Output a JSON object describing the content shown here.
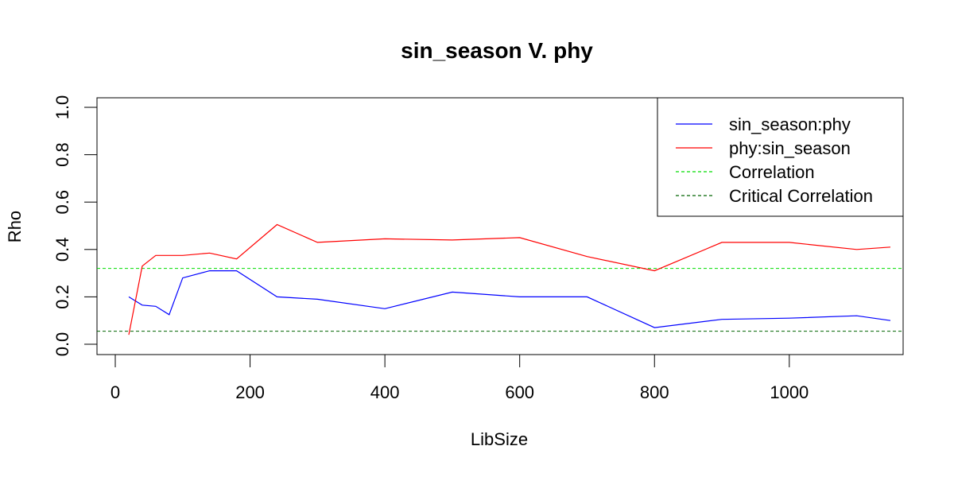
{
  "chart_data": {
    "type": "line",
    "title": "sin_season V. phy",
    "xlabel": "LibSize",
    "ylabel": "Rho",
    "xlim": [
      0,
      1150
    ],
    "ylim": [
      0,
      1
    ],
    "x_ticks": [
      0,
      200,
      400,
      600,
      800,
      1000
    ],
    "x_tick_labels": [
      "0",
      "200",
      "400",
      "600",
      "800",
      "1000"
    ],
    "y_ticks": [
      0,
      0.2,
      0.4,
      0.6,
      0.8,
      1.0
    ],
    "y_tick_labels": [
      "0.0",
      "0.2",
      "0.4",
      "0.6",
      "0.8",
      "1.0"
    ],
    "grid": false,
    "legend_position": "top-right",
    "series": [
      {
        "name": "sin_season:phy",
        "color": "#0000ff",
        "style": "solid",
        "x": [
          20,
          40,
          60,
          80,
          100,
          140,
          180,
          240,
          300,
          400,
          500,
          600,
          700,
          800,
          900,
          1000,
          1100,
          1150
        ],
        "y": [
          0.2,
          0.165,
          0.16,
          0.125,
          0.28,
          0.31,
          0.31,
          0.2,
          0.19,
          0.15,
          0.22,
          0.2,
          0.2,
          0.07,
          0.105,
          0.11,
          0.12,
          0.1
        ]
      },
      {
        "name": "phy:sin_season",
        "color": "#ff0000",
        "style": "solid",
        "x": [
          20,
          40,
          60,
          80,
          100,
          140,
          180,
          240,
          300,
          400,
          500,
          600,
          700,
          800,
          900,
          1000,
          1100,
          1150
        ],
        "y": [
          0.04,
          0.33,
          0.375,
          0.375,
          0.375,
          0.385,
          0.36,
          0.505,
          0.43,
          0.445,
          0.44,
          0.45,
          0.37,
          0.31,
          0.43,
          0.43,
          0.4,
          0.41
        ]
      }
    ],
    "reference_lines": [
      {
        "name": "Correlation",
        "y": 0.32,
        "color": "#00dd00",
        "style": "dashed"
      },
      {
        "name": "Critical Correlation",
        "y": 0.055,
        "color": "#006400",
        "style": "dashed"
      }
    ]
  }
}
